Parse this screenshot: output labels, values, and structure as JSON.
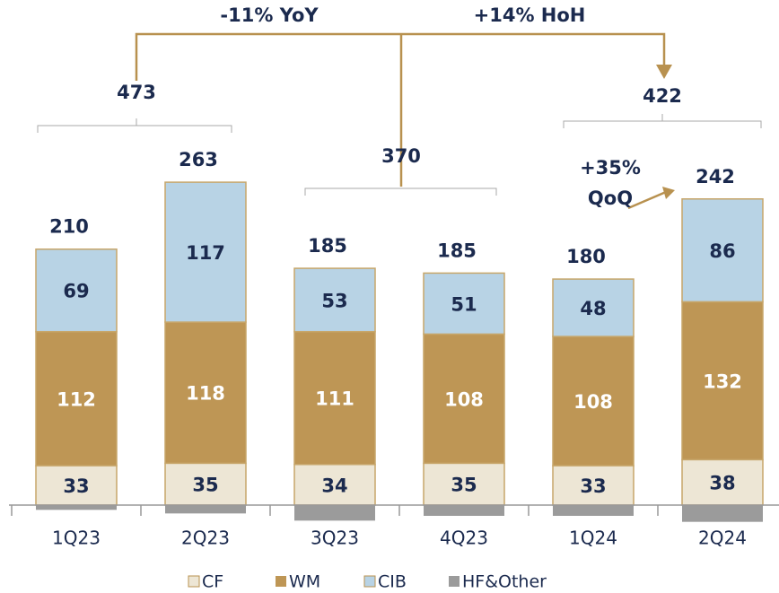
{
  "chart_data": {
    "type": "stacked_bar",
    "categories": [
      "1Q23",
      "2Q23",
      "3Q23",
      "4Q23",
      "1Q24",
      "2Q24"
    ],
    "series": [
      {
        "name": "CF",
        "color": "#ede6d5",
        "values": [
          33,
          35,
          34,
          35,
          33,
          38
        ]
      },
      {
        "name": "WM",
        "color": "#be9655",
        "values": [
          112,
          118,
          111,
          108,
          108,
          132
        ]
      },
      {
        "name": "CIB",
        "color": "#b8d3e5",
        "values": [
          69,
          117,
          53,
          51,
          48,
          86
        ]
      },
      {
        "name": "HF&Other",
        "color": "#9b9b9b",
        "values": [
          -4,
          -7,
          -13,
          -9,
          -9,
          -14
        ]
      }
    ],
    "totals": [
      210,
      263,
      185,
      185,
      180,
      242
    ],
    "group_totals": [
      473,
      370,
      422
    ],
    "annotations": {
      "yoy": "-11% YoY",
      "hoh": "+14% HoH",
      "qoq": [
        "+35%",
        "QoQ"
      ]
    },
    "legend": "bottom"
  }
}
